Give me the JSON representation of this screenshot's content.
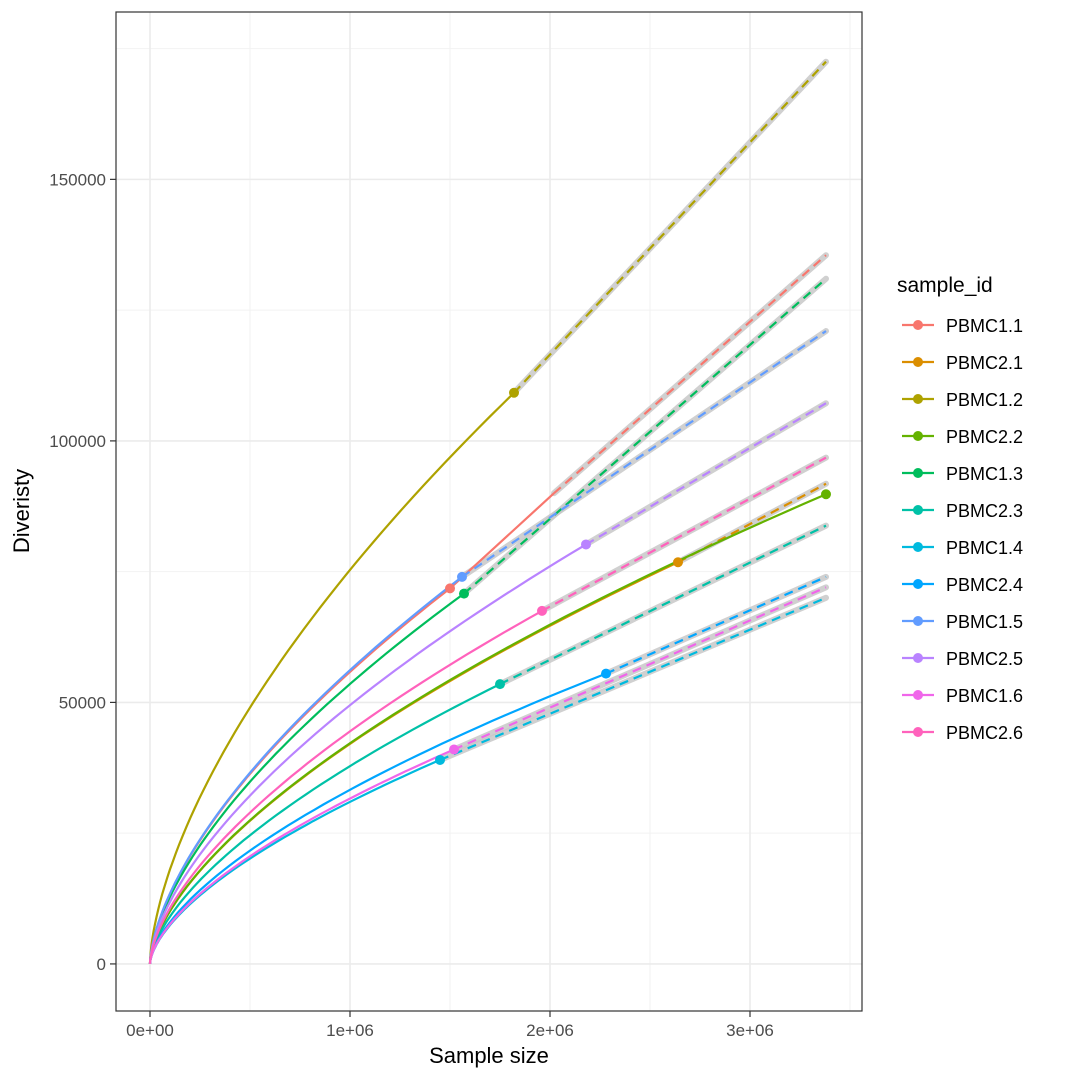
{
  "chart_data": {
    "type": "line",
    "title": "",
    "xlabel": "Sample size",
    "ylabel": "Diveristy",
    "xlim": [
      -170000,
      3560000
    ],
    "ylim": [
      -9000,
      182000
    ],
    "x_ticks": [
      0,
      1000000,
      2000000,
      3000000
    ],
    "x_tick_labels": [
      "0e+00",
      "1e+06",
      "2e+06",
      "3e+06"
    ],
    "y_ticks": [
      0,
      50000,
      100000,
      150000
    ],
    "y_tick_labels": [
      "0",
      "50000",
      "100000",
      "150000"
    ],
    "grid": true,
    "legend": {
      "title": "sample_id",
      "position": "right"
    },
    "extrapolation_end_x": 3380000,
    "series": [
      {
        "name": "PBMC1.1",
        "color": "#F8766D",
        "observed": [
          1500000,
          71800
        ],
        "observed_max": [
          2020000,
          90000
        ],
        "extrapolated_end": 135500
      },
      {
        "name": "PBMC2.1",
        "color": "#DB8E00",
        "observed": [
          2640000,
          76800
        ],
        "observed_max": [
          2640000,
          76800
        ],
        "extrapolated_end": 91800
      },
      {
        "name": "PBMC1.2",
        "color": "#AEA200",
        "observed": [
          1820000,
          109200
        ],
        "observed_max": [
          1820000,
          109200
        ],
        "extrapolated_end": 172500
      },
      {
        "name": "PBMC2.2",
        "color": "#64B200",
        "observed": [
          3380000,
          89800
        ],
        "observed_max": [
          3380000,
          89800
        ],
        "extrapolated_end": 89800
      },
      {
        "name": "PBMC1.3",
        "color": "#00BD5C",
        "observed": [
          1570000,
          70800
        ],
        "observed_max": [
          1570000,
          70800
        ],
        "extrapolated_end": 131000
      },
      {
        "name": "PBMC2.3",
        "color": "#00C1A7",
        "observed": [
          1750000,
          53500
        ],
        "observed_max": [
          1750000,
          53500
        ],
        "extrapolated_end": 83800
      },
      {
        "name": "PBMC1.4",
        "color": "#00BADE",
        "observed": [
          1450000,
          39000
        ],
        "observed_max": [
          1450000,
          39000
        ],
        "extrapolated_end": 70000
      },
      {
        "name": "PBMC2.4",
        "color": "#00A6FF",
        "observed": [
          2280000,
          55500
        ],
        "observed_max": [
          2280000,
          55500
        ],
        "extrapolated_end": 74000
      },
      {
        "name": "PBMC1.5",
        "color": "#619CFF",
        "observed": [
          1560000,
          74000
        ],
        "observed_max": [
          1560000,
          74000
        ],
        "extrapolated_end": 121000
      },
      {
        "name": "PBMC2.5",
        "color": "#B983FF",
        "observed": [
          2180000,
          80200
        ],
        "observed_max": [
          2180000,
          80200
        ],
        "extrapolated_end": 107200
      },
      {
        "name": "PBMC1.6",
        "color": "#F066EA",
        "observed": [
          1520000,
          41000
        ],
        "observed_max": [
          1520000,
          41000
        ],
        "extrapolated_end": 72000
      },
      {
        "name": "PBMC2.6",
        "color": "#FF62BC",
        "observed": [
          1960000,
          67500
        ],
        "observed_max": [
          1960000,
          67500
        ],
        "extrapolated_end": 96800
      }
    ]
  }
}
